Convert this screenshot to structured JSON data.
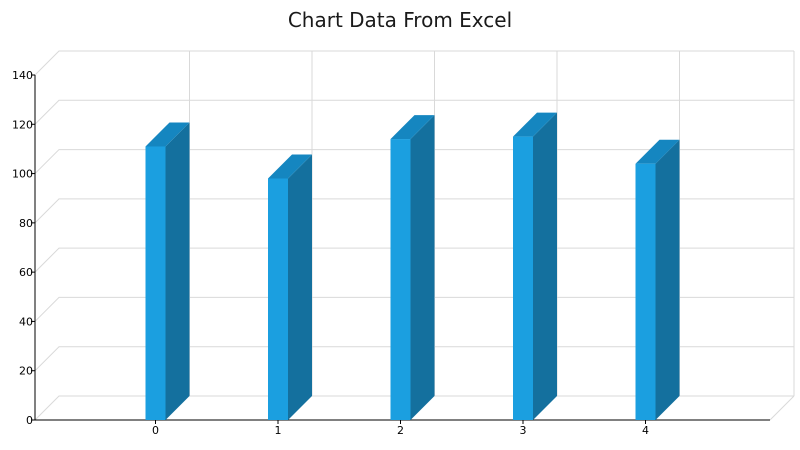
{
  "chart_data": {
    "type": "bar",
    "title": "Chart Data From Excel",
    "categories": [
      "0",
      "1",
      "2",
      "3",
      "4"
    ],
    "values": [
      111,
      98,
      114,
      115,
      104
    ],
    "ylim": [
      0,
      140
    ],
    "yticks": [
      "0",
      "20",
      "40",
      "60",
      "80",
      "100",
      "120",
      "140"
    ],
    "xlabel": "",
    "ylabel": "",
    "grid": true,
    "legend": "none",
    "three_d": true,
    "colors": {
      "bar_front": "#1b9fe0",
      "bar_side": "#14709e",
      "bar_top": "#1586c0"
    }
  }
}
